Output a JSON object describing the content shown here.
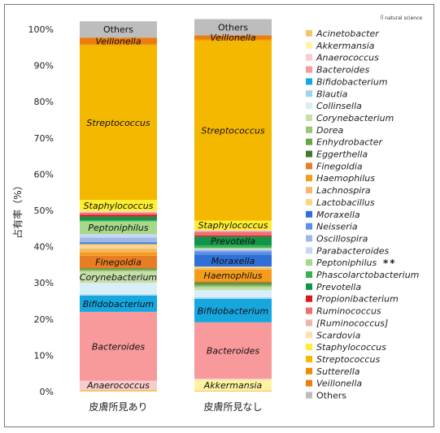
{
  "logo_text": "natural science",
  "chart_data": {
    "type": "bar",
    "stacked": true,
    "ylabel": "占有率（%）",
    "ylim": [
      0,
      100
    ],
    "yticks": [
      "0%",
      "10%",
      "20%",
      "30%",
      "40%",
      "50%",
      "60%",
      "70%",
      "80%",
      "90%",
      "100%"
    ],
    "grid": false,
    "legend_placement": "right",
    "categories": [
      "皮膚所見あり",
      "皮膚所見なし"
    ],
    "series": [
      {
        "name": "Acinetobacter",
        "color": "#f6c46b",
        "values": [
          0.5,
          0.3
        ]
      },
      {
        "name": "Akkermansia",
        "color": "#fff3a0",
        "values": [
          0,
          3.0
        ]
      },
      {
        "name": "Anaerococcus",
        "color": "#f8cccc",
        "values": [
          2.5,
          0.3
        ]
      },
      {
        "name": "Bacteroides",
        "color": "#f8999b",
        "values": [
          19.0,
          15.5
        ]
      },
      {
        "name": "Bifidobacterium",
        "color": "#17a7df",
        "values": [
          4.5,
          6.5
        ]
      },
      {
        "name": "Blautia",
        "color": "#9fd3ef",
        "values": [
          0.3,
          0.4
        ]
      },
      {
        "name": "Collinsella",
        "color": "#d8eef8",
        "values": [
          3.2,
          2.0
        ]
      },
      {
        "name": "Corynebacterium",
        "color": "#c5dfa9",
        "values": [
          3.2,
          0.8
        ]
      },
      {
        "name": "Dorea",
        "color": "#9cc57a",
        "values": [
          0.3,
          0.4
        ]
      },
      {
        "name": "Enhydrobacter",
        "color": "#6aa645",
        "values": [
          0.3,
          0.6
        ]
      },
      {
        "name": "Eggerthella",
        "color": "#3f7a2e",
        "values": [
          0.2,
          0.3
        ]
      },
      {
        "name": "Finegoldia",
        "color": "#e87e23",
        "values": [
          3.5,
          0.4
        ]
      },
      {
        "name": "Haemophilus",
        "color": "#f59d1a",
        "values": [
          1.0,
          3.2
        ]
      },
      {
        "name": "Lachnospira",
        "color": "#f7b66b",
        "values": [
          1.0,
          0.4
        ]
      },
      {
        "name": "Lactobacillus",
        "color": "#fbd87f",
        "values": [
          1.2,
          0.4
        ]
      },
      {
        "name": "Moraxella",
        "color": "#2f6fd8",
        "values": [
          0.3,
          3.3
        ]
      },
      {
        "name": "Neisseria",
        "color": "#5c8fe6",
        "values": [
          0.3,
          0.9
        ]
      },
      {
        "name": "Oscillospira",
        "color": "#9fb8e6",
        "values": [
          1.2,
          0.4
        ]
      },
      {
        "name": "Parabacteroides",
        "color": "#c9d7f2",
        "values": [
          1.0,
          0.3
        ]
      },
      {
        "name": "Peptoniphilus",
        "color": "#a7d98a",
        "values": [
          3.5,
          0.3
        ]
      },
      {
        "name": "Phascolarctobacterium",
        "color": "#38b34a",
        "values": [
          0.3,
          0.6
        ]
      },
      {
        "name": "Prevotella",
        "color": "#12954a",
        "values": [
          1.0,
          2.5
        ]
      },
      {
        "name": "Propionibacterium",
        "color": "#e0161b",
        "values": [
          0.5,
          0.3
        ]
      },
      {
        "name": "Ruminococcus",
        "color": "#ee6f6f",
        "values": [
          0.5,
          1.0
        ]
      },
      {
        "name": "[Ruminococcus]",
        "color": "#f3b1b1",
        "values": [
          0.3,
          0.3
        ]
      },
      {
        "name": "Scardovia",
        "color": "#f9e2b2",
        "values": [
          0.3,
          0.3
        ]
      },
      {
        "name": "Staphylococcus",
        "color": "#ffee2e",
        "values": [
          3.0,
          2.5
        ]
      },
      {
        "name": "Streptococcus",
        "color": "#f5b800",
        "values": [
          42.7,
          49.7
        ]
      },
      {
        "name": "Sutterella",
        "color": "#f08a00",
        "values": [
          0.3,
          0.4
        ]
      },
      {
        "name": "Veillonella",
        "color": "#e97e0e",
        "values": [
          1.8,
          1.0
        ]
      },
      {
        "name": "Others",
        "color": "#bdbdbd",
        "values": [
          4.5,
          4.5
        ]
      }
    ],
    "legend_marks": {
      "Peptoniphilus": "**"
    },
    "segment_labels": [
      [
        "Anaerococcus",
        "Bacteroides",
        "Bifidobacterium",
        "Corynebacterium",
        "Finegoldia",
        "Peptoniphilus",
        "Staphylococcus",
        "Streptococcus",
        "Veillonella",
        "Others"
      ],
      [
        "Akkermansia",
        "Bacteroides",
        "Bifidobacterium",
        "Haemophilus",
        "Moraxella",
        "Prevotella",
        "Staphylococcus",
        "Streptococcus",
        "Veillonella",
        "Others"
      ]
    ]
  }
}
